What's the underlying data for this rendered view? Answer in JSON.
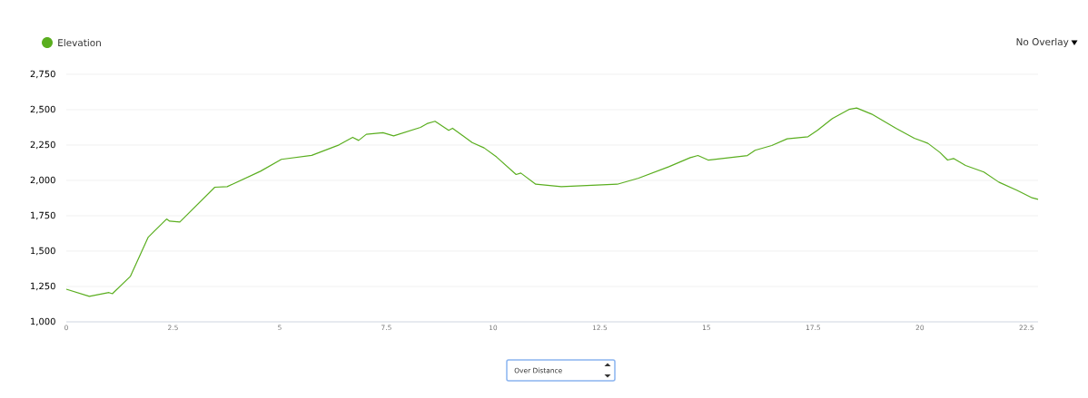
{
  "chart_data": {
    "type": "line",
    "x": [
      0.0,
      0.54,
      1.0,
      1.08,
      1.5,
      1.92,
      2.35,
      2.42,
      2.66,
      3.48,
      3.77,
      4.55,
      5.04,
      5.75,
      6.39,
      6.71,
      6.85,
      7.03,
      7.42,
      7.67,
      8.3,
      8.45,
      8.64,
      8.96,
      9.05,
      9.51,
      9.79,
      10.08,
      10.54,
      10.65,
      11.0,
      11.6,
      12.91,
      13.41,
      14.12,
      14.62,
      14.8,
      15.04,
      15.96,
      16.14,
      16.53,
      16.89,
      17.38,
      17.6,
      17.95,
      18.34,
      18.52,
      18.87,
      19.44,
      19.87,
      20.19,
      20.47,
      20.65,
      20.79,
      21.07,
      21.5,
      21.85,
      22.28,
      22.63,
      22.77
    ],
    "series": [
      {
        "name": "Elevation",
        "color": "#5aae1f",
        "values": [
          1231,
          1180,
          1207,
          1199,
          1321,
          1599,
          1727,
          1712,
          1706,
          1952,
          1956,
          2065,
          2149,
          2177,
          2251,
          2305,
          2283,
          2326,
          2337,
          2315,
          2375,
          2401,
          2418,
          2354,
          2369,
          2268,
          2230,
          2166,
          2042,
          2052,
          1973,
          1956,
          1973,
          2016,
          2097,
          2161,
          2176,
          2144,
          2176,
          2213,
          2247,
          2294,
          2309,
          2354,
          2437,
          2502,
          2512,
          2469,
          2369,
          2298,
          2262,
          2198,
          2144,
          2155,
          2106,
          2059,
          1988,
          1930,
          1877,
          1866
        ]
      }
    ],
    "xlim": [
      0,
      22.77
    ],
    "ylim": [
      1000,
      2750
    ],
    "xticks": [
      0,
      2.5,
      5,
      7.5,
      10,
      12.5,
      15,
      17.5,
      20,
      22.5
    ],
    "yticks": [
      {
        "value": 1000,
        "label": "1,000"
      },
      {
        "value": 1250,
        "label": "1,250"
      },
      {
        "value": 1500,
        "label": "1,500"
      },
      {
        "value": 1750,
        "label": "1,750"
      },
      {
        "value": 2000,
        "label": "2,000"
      },
      {
        "value": 2250,
        "label": "2,250"
      },
      {
        "value": 2500,
        "label": "2,500"
      },
      {
        "value": 2750,
        "label": "2,750"
      }
    ],
    "grid": "y",
    "legend": "top left",
    "marker": "none",
    "line_style": "solid",
    "annotations": [
      "No Overlay",
      "Over Distance"
    ]
  }
}
